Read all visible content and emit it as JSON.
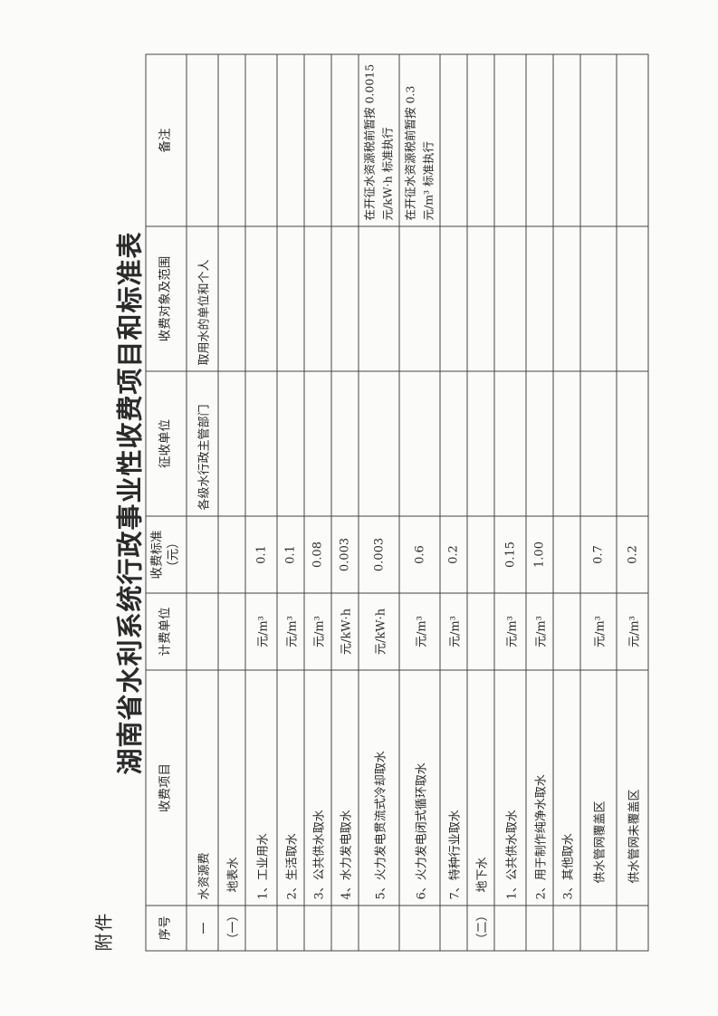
{
  "attachment_label": "附件",
  "title": "湖南省水利系统行政事业性收费项目和标准表",
  "headers": {
    "no": "序号",
    "item": "收费项目",
    "unit": "计费单位",
    "standard": "收费标准（元）",
    "collector": "征收单位",
    "scope": "收费对象及范围",
    "remark": "备注"
  },
  "rows": [
    {
      "no": "一",
      "item": "水资源费",
      "unit": "",
      "standard": "",
      "collector": "各级水行政主管部门",
      "scope": "取用水的单位和个人",
      "remark": ""
    },
    {
      "no": "（一）",
      "item": "地表水",
      "unit": "",
      "standard": "",
      "collector": "",
      "scope": "",
      "remark": ""
    },
    {
      "no": "",
      "item": "1、工业用水",
      "unit": "元/m³",
      "standard": "0.1",
      "collector": "",
      "scope": "",
      "remark": ""
    },
    {
      "no": "",
      "item": "2、生活取水",
      "unit": "元/m³",
      "standard": "0.1",
      "collector": "",
      "scope": "",
      "remark": ""
    },
    {
      "no": "",
      "item": "3、公共供水取水",
      "unit": "元/m³",
      "standard": "0.08",
      "collector": "",
      "scope": "",
      "remark": ""
    },
    {
      "no": "",
      "item": "4、水力发电取水",
      "unit": "元/kW·h",
      "standard": "0.003",
      "collector": "",
      "scope": "",
      "remark": ""
    },
    {
      "no": "",
      "item": "5、火力发电贯流式冷却取水",
      "unit": "元/kW·h",
      "standard": "0.003",
      "collector": "",
      "scope": "",
      "remark": "在开征水资源税前暂按 0.0015 元/kW·h 标准执行"
    },
    {
      "no": "",
      "item": "6、火力发电闭式循环取水",
      "unit": "元/m³",
      "standard": "0.6",
      "collector": "",
      "scope": "",
      "remark": "在开征水资源税前暂按 0.3 元/m³ 标准执行"
    },
    {
      "no": "",
      "item": "7、特种行业取水",
      "unit": "元/m³",
      "standard": "0.2",
      "collector": "",
      "scope": "",
      "remark": ""
    },
    {
      "no": "（二）",
      "item": "地下水",
      "unit": "",
      "standard": "",
      "collector": "",
      "scope": "",
      "remark": ""
    },
    {
      "no": "",
      "item": "1、公共供水取水",
      "unit": "元/m³",
      "standard": "0.15",
      "collector": "",
      "scope": "",
      "remark": ""
    },
    {
      "no": "",
      "item": "2、用于制作纯净水取水",
      "unit": "元/m³",
      "standard": "1.00",
      "collector": "",
      "scope": "",
      "remark": ""
    },
    {
      "no": "",
      "item": "3、其他取水",
      "unit": "",
      "standard": "",
      "collector": "",
      "scope": "",
      "remark": ""
    },
    {
      "no": "",
      "item": "供水管网覆盖区",
      "unit": "元/m³",
      "standard": "0.7",
      "collector": "",
      "scope": "",
      "remark": ""
    },
    {
      "no": "",
      "item": "供水管网未覆盖区",
      "unit": "元/m³",
      "standard": "0.2",
      "collector": "",
      "scope": "",
      "remark": ""
    }
  ]
}
